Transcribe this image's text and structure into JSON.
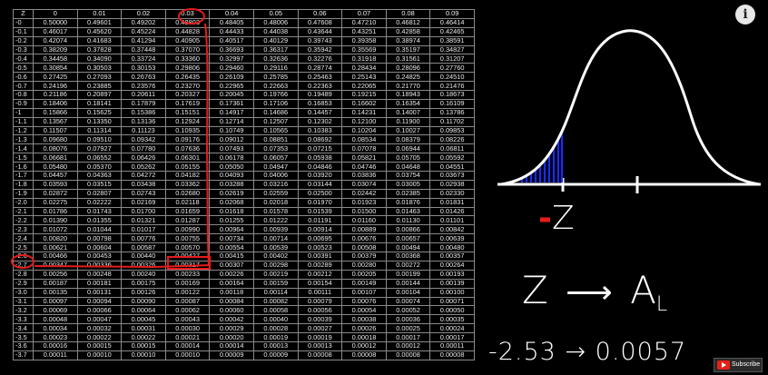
{
  "table": {
    "headers": [
      "Z",
      "0",
      "0.01",
      "0.02",
      "0.03",
      "0.04",
      "0.05",
      "0.06",
      "0.07",
      "0.08",
      "0.09"
    ],
    "rows": [
      [
        "-0",
        "0.50000",
        "0.49601",
        "0.49202",
        "0.48803",
        "0.48405",
        "0.48006",
        "0.47608",
        "0.47210",
        "0.46812",
        "0.46414"
      ],
      [
        "-0.1",
        "0.46017",
        "0.45620",
        "0.45224",
        "0.44828",
        "0.44433",
        "0.44038",
        "0.43644",
        "0.43251",
        "0.42858",
        "0.42465"
      ],
      [
        "-0.2",
        "0.42074",
        "0.41683",
        "0.41294",
        "0.40905",
        "0.40517",
        "0.40129",
        "0.39743",
        "0.39358",
        "0.38974",
        "0.38591"
      ],
      [
        "-0.3",
        "0.38209",
        "0.37828",
        "0.37448",
        "0.37070",
        "0.36693",
        "0.36317",
        "0.35942",
        "0.35569",
        "0.35197",
        "0.34827"
      ],
      [
        "-0.4",
        "0.34458",
        "0.34090",
        "0.33724",
        "0.33360",
        "0.32997",
        "0.32636",
        "0.32276",
        "0.31918",
        "0.31561",
        "0.31207"
      ],
      [
        "-0.5",
        "0.30854",
        "0.30503",
        "0.30153",
        "0.29806",
        "0.29460",
        "0.29116",
        "0.28774",
        "0.28434",
        "0.28096",
        "0.27760"
      ],
      [
        "-0.6",
        "0.27425",
        "0.27093",
        "0.26763",
        "0.26435",
        "0.26109",
        "0.25785",
        "0.25463",
        "0.25143",
        "0.24825",
        "0.24510"
      ],
      [
        "-0.7",
        "0.24196",
        "0.23885",
        "0.23576",
        "0.23270",
        "0.22965",
        "0.22663",
        "0.22363",
        "0.22065",
        "0.21770",
        "0.21476"
      ],
      [
        "-0.8",
        "0.21186",
        "0.20897",
        "0.20611",
        "0.20327",
        "0.20045",
        "0.19766",
        "0.19489",
        "0.19215",
        "0.18943",
        "0.18673"
      ],
      [
        "-0.9",
        "0.18406",
        "0.18141",
        "0.17879",
        "0.17619",
        "0.17361",
        "0.17106",
        "0.16853",
        "0.16602",
        "0.16354",
        "0.16109"
      ],
      [
        "-1",
        "0.15866",
        "0.15625",
        "0.15386",
        "0.15151",
        "0.14917",
        "0.14686",
        "0.14457",
        "0.14231",
        "0.14007",
        "0.13786"
      ],
      [
        "-1.1",
        "0.13567",
        "0.13350",
        "0.13136",
        "0.12924",
        "0.12714",
        "0.12507",
        "0.12302",
        "0.12100",
        "0.11900",
        "0.11702"
      ],
      [
        "-1.2",
        "0.11507",
        "0.11314",
        "0.11123",
        "0.10935",
        "0.10749",
        "0.10565",
        "0.10383",
        "0.10204",
        "0.10027",
        "0.09853"
      ],
      [
        "-1.3",
        "0.09680",
        "0.09510",
        "0.09342",
        "0.09176",
        "0.09012",
        "0.08851",
        "0.08692",
        "0.08534",
        "0.08379",
        "0.08226"
      ],
      [
        "-1.4",
        "0.08076",
        "0.07927",
        "0.07780",
        "0.07636",
        "0.07493",
        "0.07353",
        "0.07215",
        "0.07078",
        "0.06944",
        "0.06811"
      ],
      [
        "-1.5",
        "0.06681",
        "0.06552",
        "0.06426",
        "0.06301",
        "0.06178",
        "0.06057",
        "0.05938",
        "0.05821",
        "0.05705",
        "0.05592"
      ],
      [
        "-1.6",
        "0.05480",
        "0.05370",
        "0.05262",
        "0.05155",
        "0.05050",
        "0.04947",
        "0.04846",
        "0.04746",
        "0.04648",
        "0.04551"
      ],
      [
        "-1.7",
        "0.04457",
        "0.04363",
        "0.04272",
        "0.04182",
        "0.04093",
        "0.04006",
        "0.03920",
        "0.03836",
        "0.03754",
        "0.03673"
      ],
      [
        "-1.8",
        "0.03593",
        "0.03515",
        "0.03438",
        "0.03362",
        "0.03288",
        "0.03216",
        "0.03144",
        "0.03074",
        "0.03005",
        "0.02938"
      ],
      [
        "-1.9",
        "0.02872",
        "0.02807",
        "0.02743",
        "0.02680",
        "0.02619",
        "0.02559",
        "0.02500",
        "0.02442",
        "0.02385",
        "0.02330"
      ],
      [
        "-2.0",
        "0.02275",
        "0.02222",
        "0.02169",
        "0.02118",
        "0.02068",
        "0.02018",
        "0.01970",
        "0.01923",
        "0.01876",
        "0.01831"
      ],
      [
        "-2.1",
        "0.01786",
        "0.01743",
        "0.01700",
        "0.01659",
        "0.01618",
        "0.01578",
        "0.01539",
        "0.01500",
        "0.01463",
        "0.01426"
      ],
      [
        "-2.2",
        "0.01390",
        "0.01355",
        "0.01321",
        "0.01287",
        "0.01255",
        "0.01222",
        "0.01191",
        "0.01160",
        "0.01130",
        "0.01101"
      ],
      [
        "-2.3",
        "0.01072",
        "0.01044",
        "0.01017",
        "0.00990",
        "0.00964",
        "0.00939",
        "0.00914",
        "0.00889",
        "0.00866",
        "0.00842"
      ],
      [
        "-2.4",
        "0.00820",
        "0.00798",
        "0.00776",
        "0.00755",
        "0.00734",
        "0.00714",
        "0.00695",
        "0.00676",
        "0.00657",
        "0.00639"
      ],
      [
        "-2.5",
        "0.00621",
        "0.00604",
        "0.00587",
        "0.00570",
        "0.00554",
        "0.00539",
        "0.00523",
        "0.00508",
        "0.00494",
        "0.00480"
      ],
      [
        "-2.6",
        "0.00466",
        "0.00453",
        "0.00440",
        "0.00427",
        "0.00415",
        "0.00402",
        "0.00391",
        "0.00379",
        "0.00368",
        "0.00357"
      ],
      [
        "-2.7",
        "0.00347",
        "0.00336",
        "0.00326",
        "0.00317",
        "0.00307",
        "0.00298",
        "0.00289",
        "0.00280",
        "0.00272",
        "0.00264"
      ],
      [
        "-2.8",
        "0.00256",
        "0.00248",
        "0.00240",
        "0.00233",
        "0.00226",
        "0.00219",
        "0.00212",
        "0.00205",
        "0.00199",
        "0.00193"
      ],
      [
        "-2.9",
        "0.00187",
        "0.00181",
        "0.00175",
        "0.00169",
        "0.00164",
        "0.00159",
        "0.00154",
        "0.00149",
        "0.00144",
        "0.00139"
      ],
      [
        "-3.0",
        "0.00135",
        "0.00131",
        "0.00126",
        "0.00122",
        "0.00118",
        "0.00114",
        "0.00111",
        "0.00107",
        "0.00104",
        "0.00100"
      ],
      [
        "-3.1",
        "0.00097",
        "0.00094",
        "0.00090",
        "0.00087",
        "0.00084",
        "0.00082",
        "0.00079",
        "0.00076",
        "0.00074",
        "0.00071"
      ],
      [
        "-3.2",
        "0.00069",
        "0.00066",
        "0.00064",
        "0.00062",
        "0.00060",
        "0.00058",
        "0.00056",
        "0.00054",
        "0.00052",
        "0.00050"
      ],
      [
        "-3.3",
        "0.00048",
        "0.00047",
        "0.00045",
        "0.00043",
        "0.00042",
        "0.00040",
        "0.00039",
        "0.00038",
        "0.00036",
        "0.00035"
      ],
      [
        "-3.4",
        "0.00034",
        "0.00032",
        "0.00031",
        "0.00030",
        "0.00029",
        "0.00028",
        "0.00027",
        "0.00026",
        "0.00025",
        "0.00024"
      ],
      [
        "-3.5",
        "0.00023",
        "0.00022",
        "0.00022",
        "0.00021",
        "0.00020",
        "0.00019",
        "0.00019",
        "0.00018",
        "0.00017",
        "0.00017"
      ],
      [
        "-3.6",
        "0.00016",
        "0.00015",
        "0.00015",
        "0.00014",
        "0.00014",
        "0.00013",
        "0.00013",
        "0.00012",
        "0.00012",
        "0.00011"
      ],
      [
        "-3.7",
        "0.00011",
        "0.00010",
        "0.00010",
        "0.00010",
        "0.00009",
        "0.00009",
        "0.00008",
        "0.00008",
        "0.00008",
        "0.00008"
      ]
    ]
  },
  "notes": {
    "minus_sign": "-",
    "z_label": "Z",
    "formula_left": "Z",
    "formula_right": "A",
    "formula_subscript": "L",
    "example": "-2.53 → 0.0057"
  },
  "player": {
    "info_glyph": "i",
    "subscribe_label": "Subscribe"
  },
  "colors": {
    "background": "#000000",
    "ink": "#ffffff",
    "highlight": "#e51c1c",
    "shade": "#1a2cff"
  }
}
